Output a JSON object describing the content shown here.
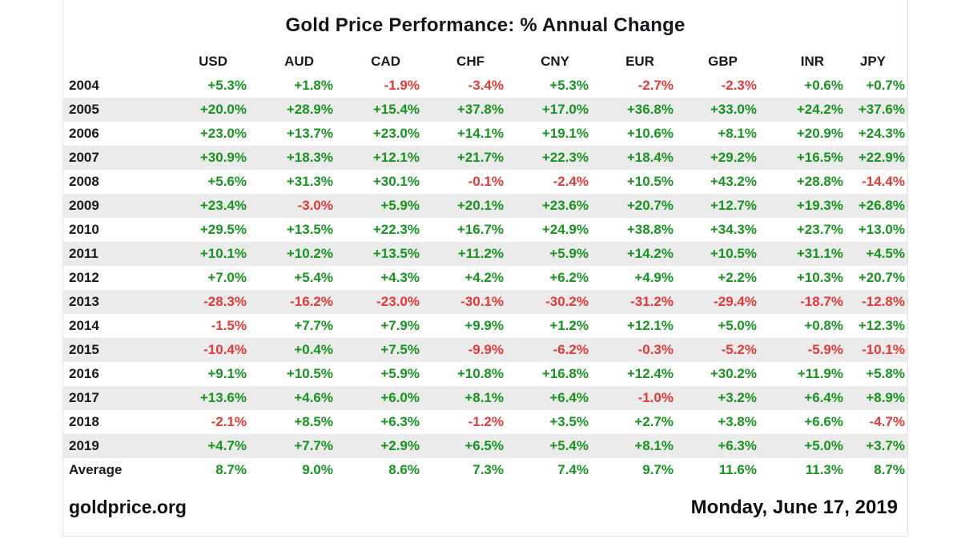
{
  "title": "Gold Price Performance: % Annual Change",
  "footer": {
    "source": "goldprice.org",
    "date": "Monday, June 17, 2019"
  },
  "colors": {
    "positive": "#16961e",
    "negative": "#e43a35",
    "stripe": "#ebebeb",
    "text": "#1b1b1b"
  },
  "table": {
    "columns": [
      "USD",
      "AUD",
      "CAD",
      "CHF",
      "CNY",
      "EUR",
      "GBP",
      "INR",
      "JPY"
    ],
    "rows": [
      {
        "label": "2004",
        "values": [
          "+5.3%",
          "+1.8%",
          "-1.9%",
          "-3.4%",
          "+5.3%",
          "-2.7%",
          "-2.3%",
          "+0.6%",
          "+0.7%"
        ]
      },
      {
        "label": "2005",
        "values": [
          "+20.0%",
          "+28.9%",
          "+15.4%",
          "+37.8%",
          "+17.0%",
          "+36.8%",
          "+33.0%",
          "+24.2%",
          "+37.6%"
        ]
      },
      {
        "label": "2006",
        "values": [
          "+23.0%",
          "+13.7%",
          "+23.0%",
          "+14.1%",
          "+19.1%",
          "+10.6%",
          "+8.1%",
          "+20.9%",
          "+24.3%"
        ]
      },
      {
        "label": "2007",
        "values": [
          "+30.9%",
          "+18.3%",
          "+12.1%",
          "+21.7%",
          "+22.3%",
          "+18.4%",
          "+29.2%",
          "+16.5%",
          "+22.9%"
        ]
      },
      {
        "label": "2008",
        "values": [
          "+5.6%",
          "+31.3%",
          "+30.1%",
          "-0.1%",
          "-2.4%",
          "+10.5%",
          "+43.2%",
          "+28.8%",
          "-14.4%"
        ]
      },
      {
        "label": "2009",
        "values": [
          "+23.4%",
          "-3.0%",
          "+5.9%",
          "+20.1%",
          "+23.6%",
          "+20.7%",
          "+12.7%",
          "+19.3%",
          "+26.8%"
        ]
      },
      {
        "label": "2010",
        "values": [
          "+29.5%",
          "+13.5%",
          "+22.3%",
          "+16.7%",
          "+24.9%",
          "+38.8%",
          "+34.3%",
          "+23.7%",
          "+13.0%"
        ]
      },
      {
        "label": "2011",
        "values": [
          "+10.1%",
          "+10.2%",
          "+13.5%",
          "+11.2%",
          "+5.9%",
          "+14.2%",
          "+10.5%",
          "+31.1%",
          "+4.5%"
        ]
      },
      {
        "label": "2012",
        "values": [
          "+7.0%",
          "+5.4%",
          "+4.3%",
          "+4.2%",
          "+6.2%",
          "+4.9%",
          "+2.2%",
          "+10.3%",
          "+20.7%"
        ]
      },
      {
        "label": "2013",
        "values": [
          "-28.3%",
          "-16.2%",
          "-23.0%",
          "-30.1%",
          "-30.2%",
          "-31.2%",
          "-29.4%",
          "-18.7%",
          "-12.8%"
        ]
      },
      {
        "label": "2014",
        "values": [
          "-1.5%",
          "+7.7%",
          "+7.9%",
          "+9.9%",
          "+1.2%",
          "+12.1%",
          "+5.0%",
          "+0.8%",
          "+12.3%"
        ]
      },
      {
        "label": "2015",
        "values": [
          "-10.4%",
          "+0.4%",
          "+7.5%",
          "-9.9%",
          "-6.2%",
          "-0.3%",
          "-5.2%",
          "-5.9%",
          "-10.1%"
        ]
      },
      {
        "label": "2016",
        "values": [
          "+9.1%",
          "+10.5%",
          "+5.9%",
          "+10.8%",
          "+16.8%",
          "+12.4%",
          "+30.2%",
          "+11.9%",
          "+5.8%"
        ]
      },
      {
        "label": "2017",
        "values": [
          "+13.6%",
          "+4.6%",
          "+6.0%",
          "+8.1%",
          "+6.4%",
          "-1.0%",
          "+3.2%",
          "+6.4%",
          "+8.9%"
        ]
      },
      {
        "label": "2018",
        "values": [
          "-2.1%",
          "+8.5%",
          "+6.3%",
          "-1.2%",
          "+3.5%",
          "+2.7%",
          "+3.8%",
          "+6.6%",
          "-4.7%"
        ]
      },
      {
        "label": "2019",
        "values": [
          "+4.7%",
          "+7.7%",
          "+2.9%",
          "+6.5%",
          "+5.4%",
          "+8.1%",
          "+6.3%",
          "+5.0%",
          "+3.7%"
        ]
      }
    ],
    "average_row": {
      "label": "Average",
      "values": [
        "8.7%",
        "9.0%",
        "8.6%",
        "7.3%",
        "7.4%",
        "9.7%",
        "11.6%",
        "11.3%",
        "8.7%"
      ]
    }
  },
  "chart_data": {
    "type": "table",
    "title": "Gold Price Performance: % Annual Change",
    "unit": "% annual change",
    "categories": [
      2004,
      2005,
      2006,
      2007,
      2008,
      2009,
      2010,
      2011,
      2012,
      2013,
      2014,
      2015,
      2016,
      2017,
      2018,
      2019
    ],
    "series": [
      {
        "name": "USD",
        "values": [
          5.3,
          20.0,
          23.0,
          30.9,
          5.6,
          23.4,
          29.5,
          10.1,
          7.0,
          -28.3,
          -1.5,
          -10.4,
          9.1,
          13.6,
          -2.1,
          4.7
        ],
        "average": 8.7
      },
      {
        "name": "AUD",
        "values": [
          1.8,
          28.9,
          13.7,
          18.3,
          31.3,
          -3.0,
          13.5,
          10.2,
          5.4,
          -16.2,
          7.7,
          0.4,
          10.5,
          4.6,
          8.5,
          7.7
        ],
        "average": 9.0
      },
      {
        "name": "CAD",
        "values": [
          -1.9,
          15.4,
          23.0,
          12.1,
          30.1,
          5.9,
          22.3,
          13.5,
          4.3,
          -23.0,
          7.9,
          7.5,
          5.9,
          6.0,
          6.3,
          2.9
        ],
        "average": 8.6
      },
      {
        "name": "CHF",
        "values": [
          -3.4,
          37.8,
          14.1,
          21.7,
          -0.1,
          20.1,
          16.7,
          11.2,
          4.2,
          -30.1,
          9.9,
          -9.9,
          10.8,
          8.1,
          -1.2,
          6.5
        ],
        "average": 7.3
      },
      {
        "name": "CNY",
        "values": [
          5.3,
          17.0,
          19.1,
          22.3,
          -2.4,
          23.6,
          24.9,
          5.9,
          6.2,
          -30.2,
          1.2,
          -6.2,
          16.8,
          6.4,
          3.5,
          5.4
        ],
        "average": 7.4
      },
      {
        "name": "EUR",
        "values": [
          -2.7,
          36.8,
          10.6,
          18.4,
          10.5,
          20.7,
          38.8,
          14.2,
          4.9,
          -31.2,
          12.1,
          -0.3,
          12.4,
          -1.0,
          2.7,
          8.1
        ],
        "average": 9.7
      },
      {
        "name": "GBP",
        "values": [
          -2.3,
          33.0,
          8.1,
          29.2,
          43.2,
          12.7,
          34.3,
          10.5,
          2.2,
          -29.4,
          5.0,
          -5.2,
          30.2,
          3.2,
          3.8,
          6.3
        ],
        "average": 11.6
      },
      {
        "name": "INR",
        "values": [
          0.6,
          24.2,
          20.9,
          16.5,
          28.8,
          19.3,
          23.7,
          31.1,
          10.3,
          -18.7,
          0.8,
          -5.9,
          11.9,
          6.4,
          6.6,
          5.0
        ],
        "average": 11.3
      },
      {
        "name": "JPY",
        "values": [
          0.7,
          37.6,
          24.3,
          22.9,
          -14.4,
          26.8,
          13.0,
          4.5,
          20.7,
          -12.8,
          12.3,
          -10.1,
          5.8,
          8.9,
          -4.7,
          3.7
        ],
        "average": 8.7
      }
    ]
  }
}
